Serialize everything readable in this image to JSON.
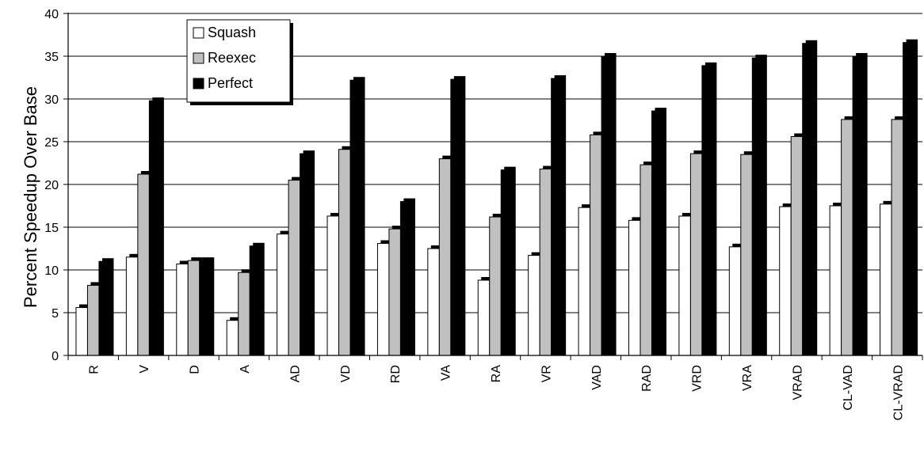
{
  "chart_data": {
    "type": "bar",
    "title": "",
    "xlabel": "",
    "ylabel": "Percent Speedup Over Base",
    "ylim": [
      0,
      40
    ],
    "yticks": [
      0,
      5,
      10,
      15,
      20,
      25,
      30,
      35,
      40
    ],
    "grid": true,
    "legend_position": "top-left",
    "categories": [
      "R",
      "V",
      "D",
      "A",
      "AD",
      "VD",
      "RD",
      "VA",
      "RA",
      "VR",
      "VAD",
      "RAD",
      "VRD",
      "VRA",
      "VRAD",
      "CL-VAD",
      "CL-VRAD"
    ],
    "series": [
      {
        "name": "Squash",
        "color": "#ffffff",
        "values": [
          5.6,
          11.5,
          10.7,
          4.1,
          14.2,
          16.3,
          13.1,
          12.5,
          8.8,
          11.7,
          17.3,
          15.8,
          16.3,
          12.7,
          17.4,
          17.5,
          17.7
        ]
      },
      {
        "name": "Reexec",
        "color": "#c0c0c0",
        "values": [
          8.2,
          21.2,
          11.1,
          9.7,
          20.5,
          24.1,
          14.8,
          23.0,
          16.2,
          21.8,
          25.8,
          22.3,
          23.6,
          23.5,
          25.6,
          27.6,
          27.6
        ]
      },
      {
        "name": "Perfect",
        "color": "#000000",
        "values": [
          11.0,
          29.8,
          11.1,
          12.8,
          23.6,
          32.2,
          18.0,
          32.3,
          21.7,
          32.4,
          35.0,
          28.6,
          33.9,
          34.8,
          36.5,
          35.0,
          36.6
        ]
      }
    ]
  }
}
